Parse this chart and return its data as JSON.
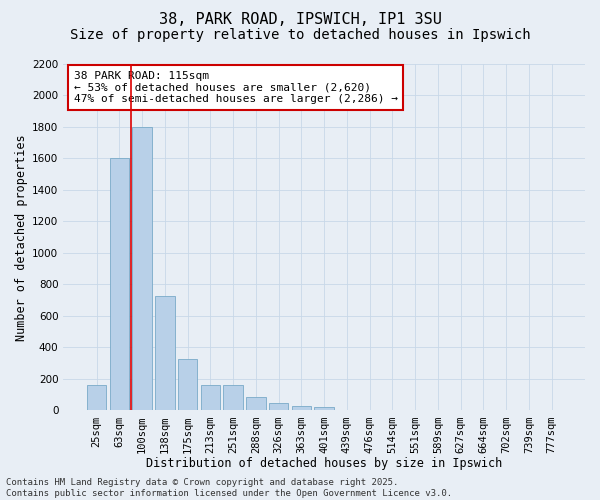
{
  "title1": "38, PARK ROAD, IPSWICH, IP1 3SU",
  "title2": "Size of property relative to detached houses in Ipswich",
  "xlabel": "Distribution of detached houses by size in Ipswich",
  "ylabel": "Number of detached properties",
  "categories": [
    "25sqm",
    "63sqm",
    "100sqm",
    "138sqm",
    "175sqm",
    "213sqm",
    "251sqm",
    "288sqm",
    "326sqm",
    "363sqm",
    "401sqm",
    "439sqm",
    "476sqm",
    "514sqm",
    "551sqm",
    "589sqm",
    "627sqm",
    "664sqm",
    "702sqm",
    "739sqm",
    "777sqm"
  ],
  "values": [
    160,
    1600,
    1800,
    725,
    325,
    160,
    160,
    85,
    45,
    30,
    20,
    0,
    0,
    0,
    0,
    0,
    0,
    0,
    0,
    0,
    0
  ],
  "bar_color": "#b8d0e8",
  "bar_edge_color": "#7aaac8",
  "vline_x": 1.5,
  "vline_color": "#dd0000",
  "annotation_text": "38 PARK ROAD: 115sqm\n← 53% of detached houses are smaller (2,620)\n47% of semi-detached houses are larger (2,286) →",
  "annotation_box_color": "#ffffff",
  "annotation_box_edge_color": "#cc0000",
  "ylim": [
    0,
    2200
  ],
  "yticks": [
    0,
    200,
    400,
    600,
    800,
    1000,
    1200,
    1400,
    1600,
    1800,
    2000,
    2200
  ],
  "grid_color": "#c8d8e8",
  "background_color": "#e8eef5",
  "footer_text": "Contains HM Land Registry data © Crown copyright and database right 2025.\nContains public sector information licensed under the Open Government Licence v3.0.",
  "title_fontsize": 11,
  "subtitle_fontsize": 10,
  "axis_label_fontsize": 8.5,
  "tick_fontsize": 7.5,
  "footer_fontsize": 6.5,
  "ann_fontsize": 8
}
